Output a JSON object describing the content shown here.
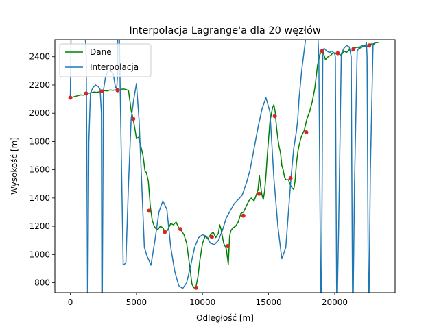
{
  "chart_data": {
    "type": "line",
    "title": "Interpolacja Lagrange'a dla 20 węzłów",
    "xlabel": "Odległość [m]",
    "ylabel": "Wysokość [m]",
    "xlim": [
      -1170,
      24570
    ],
    "ylim": [
      730,
      2520
    ],
    "xticks": [
      0,
      5000,
      10000,
      15000,
      20000
    ],
    "yticks": [
      800,
      1000,
      1200,
      1400,
      1600,
      1800,
      2000,
      2200,
      2400
    ],
    "grid": false,
    "legend_position": "top-left",
    "colors": {
      "data": "#008000",
      "interp": "#1f77b4",
      "nodes": "#d62728"
    },
    "series": [
      {
        "name": "Dane",
        "x": [
          0,
          200,
          400,
          600,
          800,
          1000,
          1200,
          1400,
          1600,
          1800,
          2000,
          2200,
          2400,
          2600,
          2800,
          3000,
          3200,
          3400,
          3600,
          3800,
          4000,
          4200,
          4400,
          4600,
          4750,
          4900,
          5000,
          5150,
          5300,
          5500,
          5650,
          5750,
          5900,
          6050,
          6200,
          6350,
          6500,
          6650,
          6800,
          7000,
          7200,
          7400,
          7600,
          7800,
          8000,
          8200,
          8400,
          8600,
          8800,
          9000,
          9200,
          9350,
          9500,
          9650,
          9800,
          10000,
          10200,
          10400,
          10600,
          10800,
          11000,
          11200,
          11300,
          11400,
          11600,
          11800,
          11950,
          12050,
          12150,
          12300,
          12500,
          12700,
          12900,
          13100,
          13300,
          13500,
          13700,
          13900,
          14100,
          14200,
          14300,
          14400,
          14500,
          14600,
          14700,
          14800,
          14900,
          15000,
          15100,
          15200,
          15300,
          15400,
          15500,
          15600,
          15700,
          15800,
          15900,
          16000,
          16100,
          16200,
          16300,
          16400,
          16500,
          16650,
          16800,
          16900,
          17000,
          17100,
          17200,
          17300,
          17400,
          17500,
          17600,
          17700,
          17900,
          18100,
          18300,
          18500,
          18700,
          18900,
          19100,
          19300,
          19500,
          19700,
          19900,
          20100,
          20300,
          20500,
          20700,
          20900,
          21100,
          21300,
          21500,
          21700,
          21900,
          22100,
          22300,
          22500,
          22700,
          22900,
          23100,
          23300
        ],
        "y": [
          2110,
          2115,
          2120,
          2125,
          2130,
          2128,
          2138,
          2142,
          2146,
          2150,
          2148,
          2152,
          2156,
          2160,
          2158,
          2165,
          2162,
          2165,
          2160,
          2168,
          2172,
          2168,
          2160,
          2020,
          1960,
          1880,
          1820,
          1830,
          1780,
          1700,
          1590,
          1580,
          1520,
          1340,
          1240,
          1200,
          1180,
          1180,
          1200,
          1190,
          1150,
          1180,
          1220,
          1210,
          1230,
          1190,
          1170,
          1140,
          1080,
          940,
          790,
          765,
          770,
          840,
          960,
          1080,
          1130,
          1110,
          1140,
          1160,
          1120,
          1150,
          1210,
          1180,
          1080,
          1040,
          930,
          1130,
          1170,
          1190,
          1200,
          1230,
          1290,
          1300,
          1340,
          1380,
          1400,
          1380,
          1430,
          1460,
          1560,
          1480,
          1420,
          1390,
          1450,
          1560,
          1700,
          1820,
          1940,
          1990,
          2040,
          2060,
          2010,
          1900,
          1820,
          1760,
          1720,
          1630,
          1600,
          1550,
          1530,
          1530,
          1530,
          1490,
          1470,
          1460,
          1520,
          1640,
          1720,
          1770,
          1810,
          1840,
          1860,
          1880,
          1960,
          2010,
          2080,
          2180,
          2340,
          2420,
          2440,
          2380,
          2400,
          2410,
          2430,
          2420,
          2420,
          2410,
          2440,
          2430,
          2450,
          2440,
          2460,
          2470,
          2460,
          2470,
          2480,
          2470,
          2490,
          2490,
          2500,
          2500
        ]
      },
      {
        "name": "Interpolacja",
        "x": [
          0,
          60,
          180,
          320,
          480,
          640,
          800,
          960,
          1100,
          1200,
          1260,
          1300,
          1330,
          1400,
          1520,
          1700,
          1900,
          2100,
          2250,
          2350,
          2380,
          2420,
          2500,
          2650,
          2850,
          3050,
          3250,
          3400,
          3500,
          3560,
          3600,
          3640,
          3700,
          3800,
          4000,
          4200,
          4400,
          4600,
          4800,
          5000,
          5200,
          5400,
          5600,
          5800,
          6100,
          6400,
          6700,
          7000,
          7300,
          7600,
          7900,
          8200,
          8500,
          8800,
          9100,
          9400,
          9700,
          10000,
          10300,
          10600,
          10900,
          11200,
          11500,
          11800,
          12100,
          12400,
          12700,
          13000,
          13300,
          13600,
          13900,
          14200,
          14500,
          14800,
          15100,
          15400,
          15700,
          16000,
          16300,
          16500,
          16700,
          16900,
          17100,
          17200,
          17300,
          17500,
          17700,
          17900,
          18100,
          18300,
          18500,
          18700,
          18800,
          18900,
          18950,
          19000,
          19050,
          19100,
          19200,
          19400,
          19600,
          19800,
          20000,
          20050,
          20100,
          20150,
          20200,
          20300,
          20500,
          20700,
          20900,
          21100,
          21250,
          21300,
          21350,
          21400,
          21500,
          21700,
          21900,
          22100,
          22300,
          22400,
          22450,
          22500,
          22550,
          22600,
          22700,
          22900,
          23100
        ],
        "y": [
          2110,
          2600,
          2600,
          2600,
          2600,
          2600,
          2600,
          2600,
          2600,
          2400,
          1500,
          700,
          700,
          1800,
          2140,
          2180,
          2200,
          2190,
          2170,
          2000,
          700,
          700,
          2160,
          2250,
          2300,
          2300,
          2280,
          2190,
          2170,
          2250,
          2600,
          2600,
          2600,
          2000,
          925,
          940,
          1500,
          1960,
          2100,
          2210,
          1950,
          1500,
          1050,
          990,
          925,
          1100,
          1300,
          1380,
          1320,
          1050,
          880,
          780,
          760,
          800,
          920,
          1050,
          1120,
          1140,
          1130,
          1080,
          1070,
          1100,
          1170,
          1260,
          1310,
          1360,
          1390,
          1420,
          1500,
          1600,
          1750,
          1900,
          2030,
          2110,
          2010,
          1540,
          1200,
          970,
          1050,
          1300,
          1550,
          1750,
          1870,
          1950,
          2100,
          2300,
          2450,
          2600,
          2600,
          2600,
          2600,
          2600,
          2400,
          1200,
          700,
          700,
          1500,
          2440,
          2460,
          2440,
          2430,
          2440,
          2420,
          2400,
          1500,
          700,
          700,
          1200,
          2420,
          2460,
          2480,
          2470,
          2400,
          1500,
          700,
          700,
          1500,
          2440,
          2470,
          2480,
          2470,
          2500,
          2400,
          1500,
          700,
          700,
          1600,
          2480,
          2500
        ]
      },
      {
        "name": "",
        "type": "scatter",
        "x": [
          0,
          1190,
          2380,
          3570,
          4760,
          5950,
          7140,
          8330,
          9520,
          10710,
          11900,
          13090,
          14280,
          15470,
          16660,
          17850,
          19040,
          20230,
          21420,
          22610
        ],
        "y": [
          2110,
          2140,
          2155,
          2162,
          1960,
          1310,
          1160,
          1180,
          765,
          1125,
          1060,
          1275,
          1430,
          1980,
          1540,
          1865,
          2440,
          2425,
          2455,
          2480
        ]
      }
    ]
  }
}
